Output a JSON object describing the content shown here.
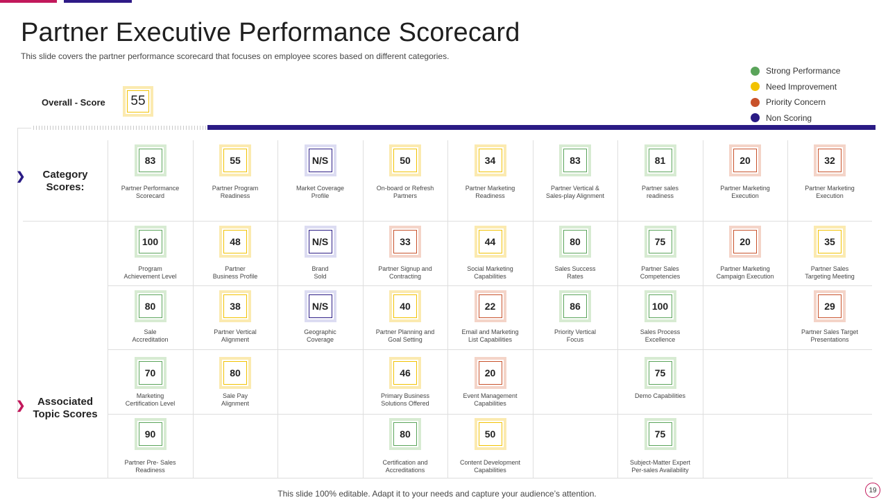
{
  "title": "Partner Executive Performance Scorecard",
  "subtitle": "This slide covers the partner performance scorecard that focuses on employee scores based on different categories.",
  "legend": [
    {
      "label": "Strong Performance",
      "color": "#5aa45a"
    },
    {
      "label": "Need Improvement",
      "color": "#f2c200"
    },
    {
      "label": "Priority Concern",
      "color": "#c8512a"
    },
    {
      "label": "Non Scoring",
      "color": "#2a1b85"
    }
  ],
  "overall": {
    "label": "Overall - Score",
    "value": "55",
    "status": "yellow"
  },
  "row_labels": {
    "category": "Category Scores:",
    "associated": "Associated Topic Scores"
  },
  "cells": [
    {
      "col": 0,
      "row": 0,
      "value": "83",
      "status": "green",
      "caption": "Partner Performance\nScorecard"
    },
    {
      "col": 1,
      "row": 0,
      "value": "55",
      "status": "yellow",
      "caption": "Partner Program\nReadiness"
    },
    {
      "col": 2,
      "row": 0,
      "value": "N/S",
      "status": "blue",
      "caption": "Market Coverage\nProfile"
    },
    {
      "col": 3,
      "row": 0,
      "value": "50",
      "status": "yellow",
      "caption": "On-board or Refresh\nPartners"
    },
    {
      "col": 4,
      "row": 0,
      "value": "34",
      "status": "yellow",
      "caption": "Partner Marketing\nReadiness"
    },
    {
      "col": 5,
      "row": 0,
      "value": "83",
      "status": "green",
      "caption": "Partner Vertical &\nSales-play Alignment"
    },
    {
      "col": 6,
      "row": 0,
      "value": "81",
      "status": "green",
      "caption": "Partner sales\nreadiness"
    },
    {
      "col": 7,
      "row": 0,
      "value": "20",
      "status": "red",
      "caption": "Partner Marketing\nExecution"
    },
    {
      "col": 8,
      "row": 0,
      "value": "32",
      "status": "red",
      "caption": "Partner Marketing\nExecution"
    },
    {
      "col": 0,
      "row": 1,
      "value": "100",
      "status": "green",
      "caption": "Program\nAchievement Level"
    },
    {
      "col": 1,
      "row": 1,
      "value": "48",
      "status": "yellow",
      "caption": "Partner\nBusiness Profile"
    },
    {
      "col": 2,
      "row": 1,
      "value": "N/S",
      "status": "blue",
      "caption": "Brand\nSold"
    },
    {
      "col": 3,
      "row": 1,
      "value": "33",
      "status": "red",
      "caption": "Partner Signup and\nContracting"
    },
    {
      "col": 4,
      "row": 1,
      "value": "44",
      "status": "yellow",
      "caption": "Social Marketing\nCapabilities"
    },
    {
      "col": 5,
      "row": 1,
      "value": "80",
      "status": "green",
      "caption": "Sales Success\nRates"
    },
    {
      "col": 6,
      "row": 1,
      "value": "75",
      "status": "green",
      "caption": "Partner Sales\nCompetencies"
    },
    {
      "col": 7,
      "row": 1,
      "value": "20",
      "status": "red",
      "caption": "Partner Marketing\nCampaign Execution"
    },
    {
      "col": 8,
      "row": 1,
      "value": "35",
      "status": "yellow",
      "caption": "Partner Sales\nTargeting Meeting"
    },
    {
      "col": 0,
      "row": 2,
      "value": "80",
      "status": "green",
      "caption": "Sale\nAccreditation"
    },
    {
      "col": 1,
      "row": 2,
      "value": "38",
      "status": "yellow",
      "caption": "Partner Vertical\nAlignment"
    },
    {
      "col": 2,
      "row": 2,
      "value": "N/S",
      "status": "blue",
      "caption": "Geographic\nCoverage"
    },
    {
      "col": 3,
      "row": 2,
      "value": "40",
      "status": "yellow",
      "caption": "Partner Planning and\nGoal Setting"
    },
    {
      "col": 4,
      "row": 2,
      "value": "22",
      "status": "red",
      "caption": "Email and Marketing\nList Capabilities"
    },
    {
      "col": 5,
      "row": 2,
      "value": "86",
      "status": "green",
      "caption": "Priority Vertical\nFocus"
    },
    {
      "col": 6,
      "row": 2,
      "value": "100",
      "status": "green",
      "caption": "Sales Process\nExcellence"
    },
    {
      "col": 8,
      "row": 2,
      "value": "29",
      "status": "red",
      "caption": "Partner Sales Target\nPresentations"
    },
    {
      "col": 0,
      "row": 3,
      "value": "70",
      "status": "green",
      "caption": "Marketing\nCertification Level"
    },
    {
      "col": 1,
      "row": 3,
      "value": "80",
      "status": "yellow",
      "caption": "Sale Pay\nAlignment"
    },
    {
      "col": 3,
      "row": 3,
      "value": "46",
      "status": "yellow",
      "caption": "Primary Business\nSolutions Offered"
    },
    {
      "col": 4,
      "row": 3,
      "value": "20",
      "status": "red",
      "caption": "Event Management\nCapabilities"
    },
    {
      "col": 6,
      "row": 3,
      "value": "75",
      "status": "green",
      "caption": "Demo Capabilities"
    },
    {
      "col": 0,
      "row": 4,
      "value": "90",
      "status": "green",
      "caption": "Partner Pre- Sales\nReadiness"
    },
    {
      "col": 3,
      "row": 4,
      "value": "80",
      "status": "green",
      "caption": "Certification and\nAccreditations"
    },
    {
      "col": 4,
      "row": 4,
      "value": "50",
      "status": "yellow",
      "caption": "Content Development\nCapabilities"
    },
    {
      "col": 6,
      "row": 4,
      "value": "75",
      "status": "green",
      "caption": "Subject-Matter Expert\nPer-sales Availability"
    }
  ],
  "footer": "This slide 100% editable. Adapt it to your needs and capture your audience’s attention.",
  "page_number": "19"
}
